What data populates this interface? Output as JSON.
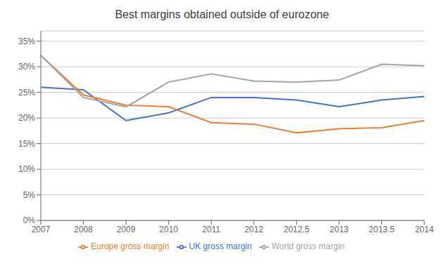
{
  "chart_data": {
    "type": "line",
    "title": "Best margins obtained outside of eurozone",
    "categories": [
      "2007",
      "2008",
      "2009",
      "2010",
      "2011",
      "2012",
      "2012.5",
      "2013",
      "2013.5",
      "2014"
    ],
    "series": [
      {
        "name": "UK gross margin",
        "color": "#4472C4",
        "values": [
          0.26,
          0.255,
          0.195,
          0.21,
          0.24,
          0.24,
          0.235,
          0.222,
          0.235,
          0.242
        ]
      },
      {
        "name": "Europe gross margin",
        "color": "#ED7D31",
        "values": [
          0.322,
          0.245,
          0.225,
          0.222,
          0.191,
          0.188,
          0.171,
          0.179,
          0.181,
          0.195
        ]
      },
      {
        "name": "World gross margin",
        "color": "#A5A5A5",
        "values": [
          0.322,
          0.24,
          0.222,
          0.27,
          0.286,
          0.272,
          0.27,
          0.274,
          0.305,
          0.302
        ]
      }
    ],
    "ylim": [
      0,
      0.37
    ],
    "yticks": [
      {
        "value": 0,
        "label": "0%"
      },
      {
        "value": 0.05,
        "label": "5%"
      },
      {
        "value": 0.1,
        "label": "10%"
      },
      {
        "value": 0.15,
        "label": "15%"
      },
      {
        "value": 0.2,
        "label": "20%"
      },
      {
        "value": 0.25,
        "label": "25%"
      },
      {
        "value": 0.3,
        "label": "30%"
      },
      {
        "value": 0.35,
        "label": "35%"
      }
    ],
    "grid": true,
    "legend": "bottom"
  }
}
